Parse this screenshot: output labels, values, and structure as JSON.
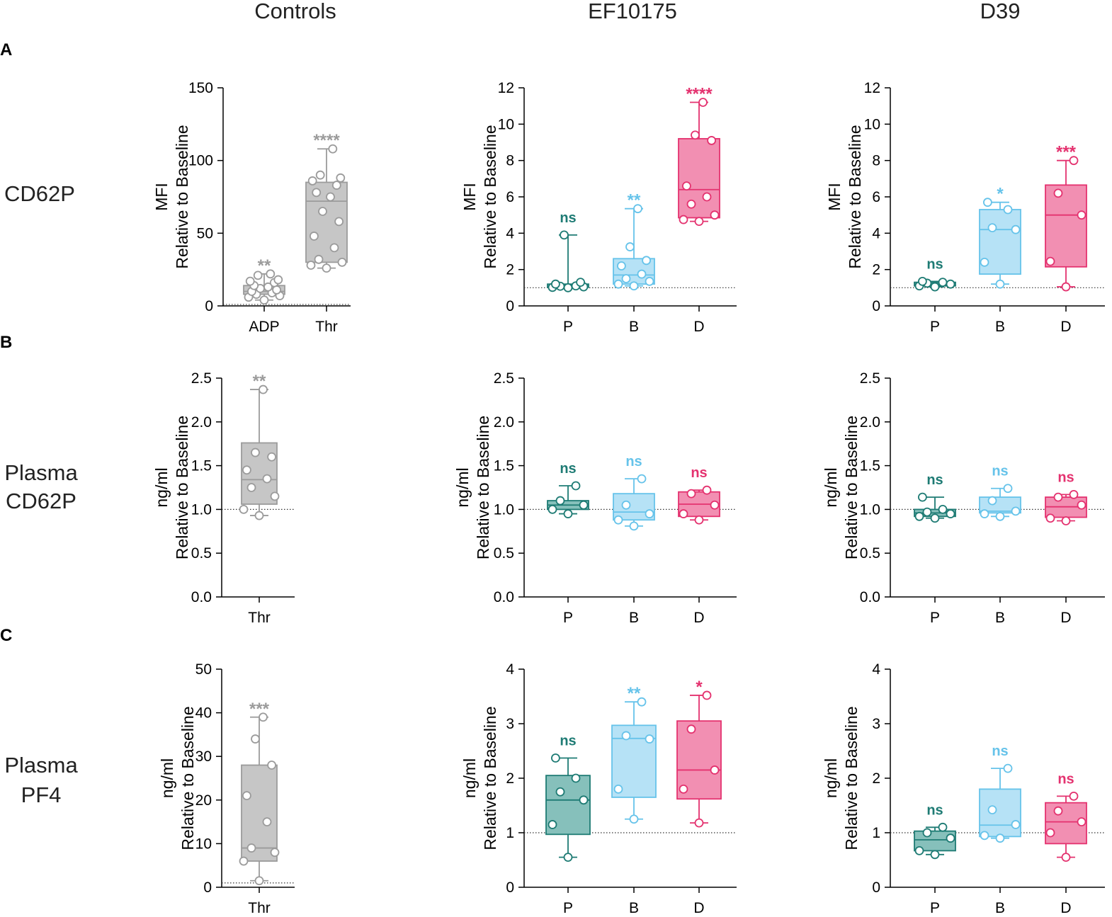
{
  "colors": {
    "control": "#9b9b9b",
    "control_fill": "#c6c6c6",
    "P": "#1e7b74",
    "P_fill": "#86c0bb",
    "B": "#66c3ea",
    "B_fill": "#b6e2f6",
    "D": "#e4326f",
    "D_fill": "#f28fb2",
    "axis": "#000000",
    "baseline": "#333333"
  },
  "columns": [
    "Controls",
    "EF10175",
    "D39"
  ],
  "rows": [
    {
      "letter": "A",
      "label": [
        "CD62P"
      ]
    },
    {
      "letter": "B",
      "label": [
        "Plasma",
        "CD62P"
      ]
    },
    {
      "letter": "C",
      "label": [
        "Plasma",
        "PF4"
      ]
    }
  ],
  "chart_data": [
    {
      "id": "A-controls",
      "type": "box",
      "row": "A",
      "column": "Controls",
      "ylabel": [
        "MFI",
        "Relative to Baseline"
      ],
      "ylim": [
        0,
        150
      ],
      "yticks": [
        0,
        50,
        100,
        150
      ],
      "baseline": 1,
      "groups": [
        {
          "label": "ADP",
          "color": "control",
          "sig": "**",
          "min": 4,
          "q1": 8,
          "median": 10,
          "q3": 14,
          "max": 22,
          "points": [
            4,
            6,
            7,
            8,
            9,
            10,
            11,
            12,
            13,
            14,
            16,
            17,
            18,
            21,
            22
          ]
        },
        {
          "label": "Thr",
          "color": "control",
          "sig": "****",
          "min": 26,
          "q1": 30,
          "median": 72,
          "q3": 85,
          "max": 108,
          "points": [
            26,
            28,
            30,
            32,
            40,
            48,
            58,
            65,
            75,
            78,
            83,
            86,
            88,
            90,
            108
          ]
        }
      ]
    },
    {
      "id": "A-ef10175",
      "type": "box",
      "row": "A",
      "column": "EF10175",
      "ylabel": [
        "MFI",
        "Relative to Baseline"
      ],
      "ylim": [
        0,
        12
      ],
      "yticks": [
        0,
        2,
        4,
        6,
        8,
        10,
        12
      ],
      "baseline": 1,
      "groups": [
        {
          "label": "P",
          "color": "P",
          "sig": "ns",
          "min": 1.0,
          "q1": 1.02,
          "median": 1.08,
          "q3": 1.2,
          "max": 3.9,
          "points": [
            1.0,
            1.02,
            1.05,
            1.08,
            1.1,
            1.2,
            1.3,
            3.9
          ]
        },
        {
          "label": "B",
          "color": "B",
          "sig": "**",
          "min": 1.1,
          "q1": 1.2,
          "median": 1.7,
          "q3": 2.6,
          "max": 5.35,
          "points": [
            1.1,
            1.2,
            1.35,
            1.5,
            1.75,
            2.2,
            2.5,
            3.25,
            5.35
          ]
        },
        {
          "label": "D",
          "color": "D",
          "sig": "****",
          "min": 4.65,
          "q1": 4.85,
          "median": 6.4,
          "q3": 9.2,
          "max": 11.2,
          "points": [
            4.65,
            4.75,
            5.0,
            5.6,
            6.0,
            6.6,
            9.1,
            9.4,
            11.2
          ]
        }
      ]
    },
    {
      "id": "A-d39",
      "type": "box",
      "row": "A",
      "column": "D39",
      "ylabel": [
        "MFI",
        "Relative to Baseline"
      ],
      "ylim": [
        0,
        12
      ],
      "yticks": [
        0,
        2,
        4,
        6,
        8,
        10,
        12
      ],
      "baseline": 1,
      "groups": [
        {
          "label": "P",
          "color": "P",
          "sig": "ns",
          "min": 1.05,
          "q1": 1.1,
          "median": 1.2,
          "q3": 1.3,
          "max": 1.35,
          "points": [
            1.05,
            1.1,
            1.2,
            1.25,
            1.3,
            1.35
          ]
        },
        {
          "label": "B",
          "color": "B",
          "sig": "*",
          "min": 1.2,
          "q1": 1.75,
          "median": 4.2,
          "q3": 5.3,
          "max": 5.7,
          "points": [
            1.2,
            2.4,
            4.2,
            4.3,
            5.3,
            5.7
          ]
        },
        {
          "label": "D",
          "color": "D",
          "sig": "***",
          "min": 1.05,
          "q1": 2.15,
          "median": 5.0,
          "q3": 6.65,
          "max": 8.0,
          "points": [
            1.05,
            2.45,
            5.0,
            6.2,
            8.0
          ]
        }
      ]
    },
    {
      "id": "B-controls",
      "type": "box",
      "row": "B",
      "column": "Controls",
      "ylabel": [
        "ng/ml",
        "Relative to Baseline"
      ],
      "ylim": [
        0,
        2.5
      ],
      "yticks": [
        "0.0",
        "0.5",
        "1.0",
        "1.5",
        "2.0",
        "2.5"
      ],
      "baseline": 1,
      "groups": [
        {
          "label": "Thr",
          "color": "control",
          "sig": "**",
          "min": 0.93,
          "q1": 1.06,
          "median": 1.34,
          "q3": 1.76,
          "max": 2.37,
          "points": [
            0.93,
            1.0,
            1.15,
            1.25,
            1.35,
            1.45,
            1.6,
            1.65,
            2.37
          ]
        }
      ]
    },
    {
      "id": "B-ef10175",
      "type": "box",
      "row": "B",
      "column": "EF10175",
      "ylabel": [
        "ng/ml",
        "Relative to Baseline"
      ],
      "ylim": [
        0,
        2.5
      ],
      "yticks": [
        "0.0",
        "0.5",
        "1.0",
        "1.5",
        "2.0",
        "2.5"
      ],
      "baseline": 1,
      "groups": [
        {
          "label": "P",
          "color": "P",
          "sig": "ns",
          "min": 0.95,
          "q1": 1.0,
          "median": 1.05,
          "q3": 1.1,
          "max": 1.27,
          "points": [
            0.95,
            1.0,
            1.05,
            1.1,
            1.27
          ]
        },
        {
          "label": "B",
          "color": "B",
          "sig": "ns",
          "min": 0.81,
          "q1": 0.88,
          "median": 0.97,
          "q3": 1.18,
          "max": 1.35,
          "points": [
            0.81,
            0.88,
            0.95,
            1.05,
            1.35
          ]
        },
        {
          "label": "D",
          "color": "D",
          "sig": "ns",
          "min": 0.88,
          "q1": 0.92,
          "median": 1.06,
          "q3": 1.2,
          "max": 1.22,
          "points": [
            0.88,
            0.95,
            1.05,
            1.18,
            1.22
          ]
        }
      ]
    },
    {
      "id": "B-d39",
      "type": "box",
      "row": "B",
      "column": "D39",
      "ylabel": [
        "ng/ml",
        "Relative to Baseline"
      ],
      "ylim": [
        0,
        2.5
      ],
      "yticks": [
        "0.0",
        "0.5",
        "1.0",
        "1.5",
        "2.0",
        "2.5"
      ],
      "baseline": 1,
      "groups": [
        {
          "label": "P",
          "color": "P",
          "sig": "ns",
          "min": 0.9,
          "q1": 0.92,
          "median": 0.96,
          "q3": 1.0,
          "max": 1.14,
          "points": [
            0.9,
            0.92,
            0.95,
            0.97,
            1.0,
            1.14
          ]
        },
        {
          "label": "B",
          "color": "B",
          "sig": "ns",
          "min": 0.92,
          "q1": 0.96,
          "median": 0.98,
          "q3": 1.14,
          "max": 1.24,
          "points": [
            0.92,
            0.95,
            0.98,
            1.1,
            1.24
          ]
        },
        {
          "label": "D",
          "color": "D",
          "sig": "ns",
          "min": 0.87,
          "q1": 0.91,
          "median": 1.03,
          "q3": 1.14,
          "max": 1.17,
          "points": [
            0.87,
            0.9,
            1.05,
            1.14,
            1.17
          ]
        }
      ]
    },
    {
      "id": "C-controls",
      "type": "box",
      "row": "C",
      "column": "Controls",
      "ylabel": [
        "ng/ml",
        "Relative to Baseline"
      ],
      "ylim": [
        0,
        50
      ],
      "yticks": [
        0,
        10,
        20,
        30,
        40,
        50
      ],
      "baseline": 1,
      "groups": [
        {
          "label": "Thr",
          "color": "control",
          "sig": "***",
          "min": 1.5,
          "q1": 6,
          "median": 9,
          "q3": 28,
          "max": 39,
          "points": [
            1.5,
            6,
            8,
            9,
            15,
            21,
            28,
            34,
            39
          ]
        }
      ]
    },
    {
      "id": "C-ef10175",
      "type": "box",
      "row": "C",
      "column": "EF10175",
      "ylabel": [
        "ng/ml",
        "Relative to Baseline"
      ],
      "ylim": [
        0,
        4
      ],
      "yticks": [
        0,
        1,
        2,
        3,
        4
      ],
      "baseline": 1,
      "groups": [
        {
          "label": "P",
          "color": "P",
          "sig": "ns",
          "min": 0.55,
          "q1": 0.97,
          "median": 1.6,
          "q3": 2.05,
          "max": 2.37,
          "points": [
            0.55,
            1.15,
            1.6,
            1.75,
            2.0,
            2.37
          ]
        },
        {
          "label": "B",
          "color": "B",
          "sig": "**",
          "min": 1.25,
          "q1": 1.65,
          "median": 2.73,
          "q3": 2.97,
          "max": 3.4,
          "points": [
            1.25,
            1.8,
            2.72,
            2.78,
            3.4
          ]
        },
        {
          "label": "D",
          "color": "D",
          "sig": "*",
          "min": 1.18,
          "q1": 1.62,
          "median": 2.15,
          "q3": 3.05,
          "max": 3.52,
          "points": [
            1.18,
            1.8,
            2.15,
            2.9,
            3.52
          ]
        }
      ]
    },
    {
      "id": "C-d39",
      "type": "box",
      "row": "C",
      "column": "D39",
      "ylabel": [
        "ng/ml",
        "Relative to Baseline"
      ],
      "ylim": [
        0,
        4
      ],
      "yticks": [
        0,
        1,
        2,
        3,
        4
      ],
      "baseline": 1,
      "groups": [
        {
          "label": "P",
          "color": "P",
          "sig": "ns",
          "min": 0.6,
          "q1": 0.67,
          "median": 0.87,
          "q3": 1.03,
          "max": 1.1,
          "points": [
            0.6,
            0.67,
            0.9,
            1.0,
            1.1
          ]
        },
        {
          "label": "B",
          "color": "B",
          "sig": "ns",
          "min": 0.9,
          "q1": 0.93,
          "median": 1.14,
          "q3": 1.8,
          "max": 2.18,
          "points": [
            0.9,
            0.95,
            1.15,
            1.42,
            2.18
          ]
        },
        {
          "label": "D",
          "color": "D",
          "sig": "ns",
          "min": 0.55,
          "q1": 0.8,
          "median": 1.2,
          "q3": 1.55,
          "max": 1.67,
          "points": [
            0.55,
            1.0,
            1.2,
            1.4,
            1.67
          ]
        }
      ]
    }
  ]
}
